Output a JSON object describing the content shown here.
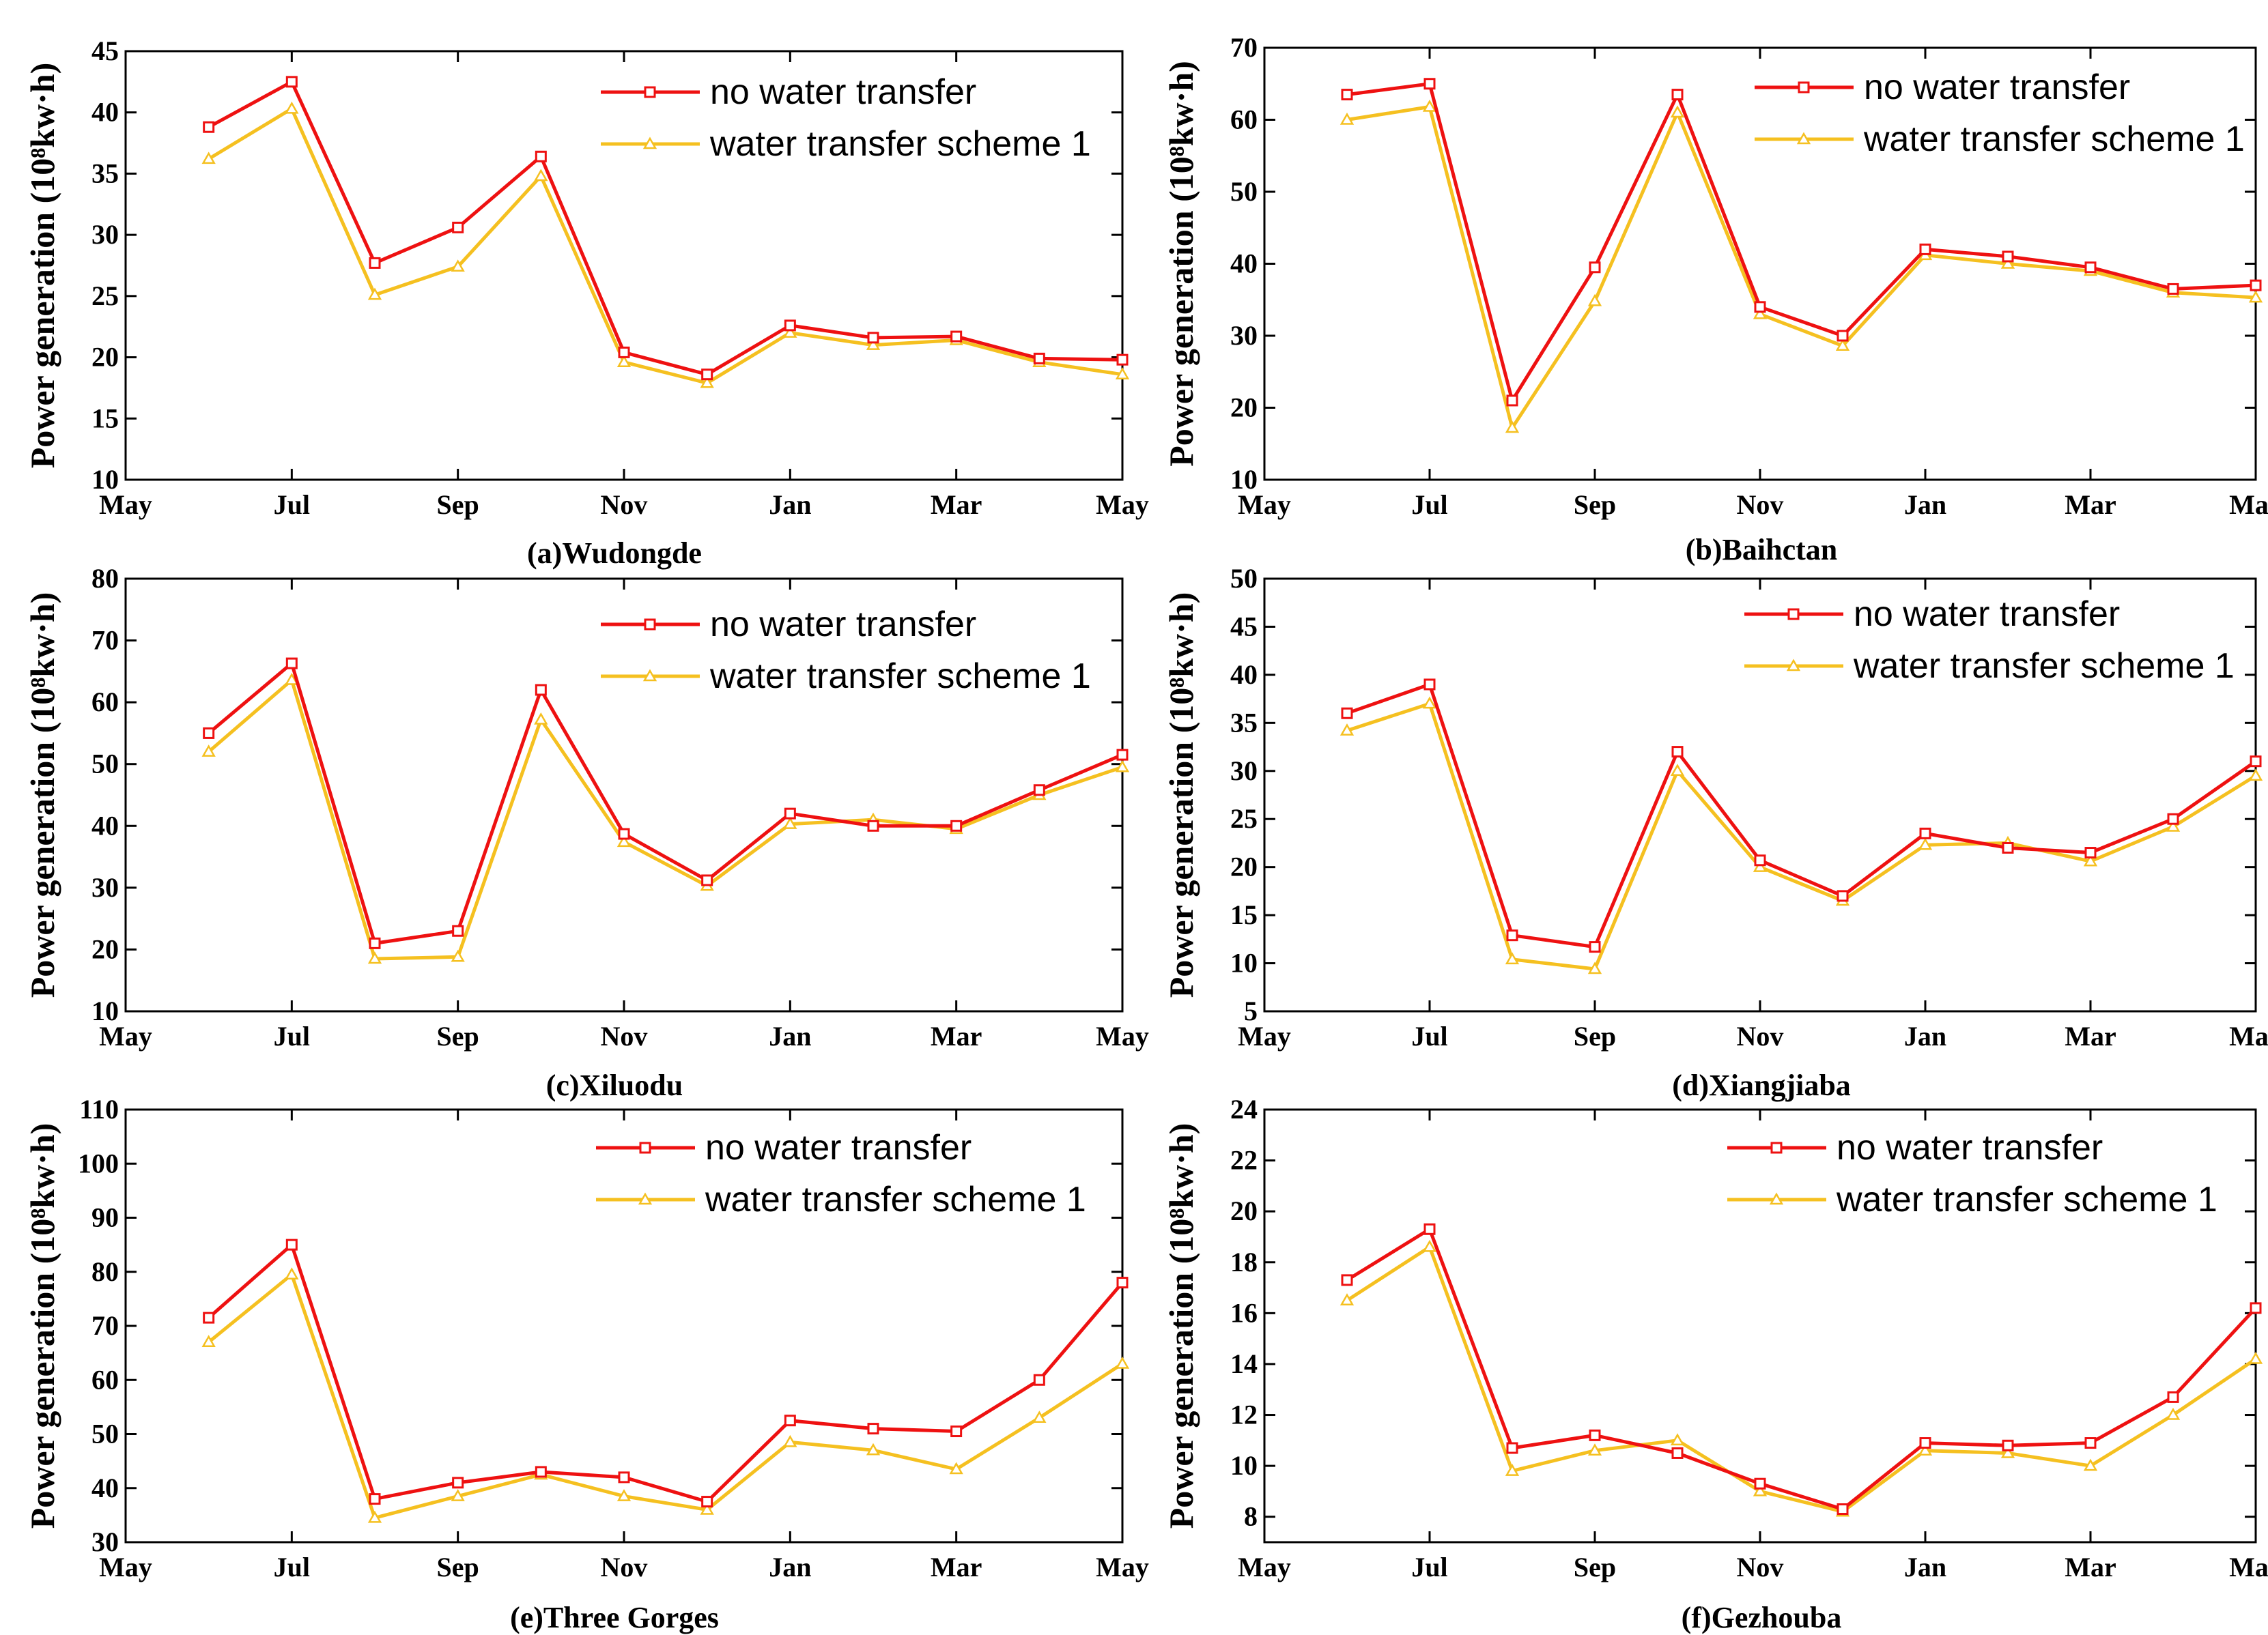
{
  "colors": {
    "no_transfer": "#ee1111",
    "scheme1": "#f5c020",
    "axis": "#000000"
  },
  "y_unit": "10^8 kw·h",
  "chart_data": [
    {
      "type": "line",
      "caption": "(a)Wudongde",
      "ylabel": "Power generation (10⁸kw·h)",
      "x_ticks": [
        "May",
        "Jul",
        "Sep",
        "Nov",
        "Jan",
        "Mar",
        "May"
      ],
      "x_range": [
        0,
        12
      ],
      "ylim": [
        10,
        45
      ],
      "y_ticks": [
        10,
        15,
        20,
        25,
        30,
        35,
        40,
        45
      ],
      "x": [
        1,
        2,
        3,
        4,
        5,
        6,
        7,
        8,
        9,
        10,
        11,
        12
      ],
      "series": [
        {
          "name": "no water transfer",
          "values": [
            38.8,
            42.5,
            27.7,
            30.6,
            36.4,
            20.4,
            18.6,
            22.6,
            21.6,
            21.7,
            19.9,
            19.8
          ]
        },
        {
          "name": "water transfer scheme 1",
          "values": [
            36.2,
            40.3,
            25.1,
            27.4,
            34.8,
            19.6,
            17.9,
            22.0,
            21.0,
            21.4,
            19.6,
            18.6
          ]
        }
      ]
    },
    {
      "type": "line",
      "caption": "(b)Baihctan",
      "ylabel": "Power generation (10⁸kw·h)",
      "x_ticks": [
        "May",
        "Jul",
        "Sep",
        "Nov",
        "Jan",
        "Mar",
        "May"
      ],
      "x_range": [
        0,
        12
      ],
      "ylim": [
        10,
        70
      ],
      "y_ticks": [
        10,
        20,
        30,
        40,
        50,
        60,
        70
      ],
      "x": [
        1,
        2,
        3,
        4,
        5,
        6,
        7,
        8,
        9,
        10,
        11,
        12
      ],
      "series": [
        {
          "name": "no water transfer",
          "values": [
            63.5,
            65.0,
            21.0,
            39.5,
            63.5,
            34.0,
            30.0,
            42.0,
            41.0,
            39.5,
            36.5,
            37.0
          ]
        },
        {
          "name": "water transfer scheme 1",
          "values": [
            60.0,
            61.8,
            17.2,
            34.8,
            61.0,
            33.0,
            28.6,
            41.2,
            40.0,
            39.0,
            36.0,
            35.3
          ]
        }
      ]
    },
    {
      "type": "line",
      "caption": "(c)Xiluodu",
      "ylabel": "Power generation (10⁸kw·h)",
      "x_ticks": [
        "May",
        "Jul",
        "Sep",
        "Nov",
        "Jan",
        "Mar",
        "May"
      ],
      "x_range": [
        0,
        12
      ],
      "ylim": [
        10,
        80
      ],
      "y_ticks": [
        10,
        20,
        30,
        40,
        50,
        60,
        70,
        80
      ],
      "x": [
        1,
        2,
        3,
        4,
        5,
        6,
        7,
        8,
        9,
        10,
        11,
        12
      ],
      "series": [
        {
          "name": "no water transfer",
          "values": [
            55.0,
            66.3,
            21.0,
            23.0,
            62.0,
            38.7,
            31.2,
            42.0,
            40.0,
            40.0,
            45.8,
            51.5
          ]
        },
        {
          "name": "water transfer scheme 1",
          "values": [
            52.0,
            63.6,
            18.5,
            18.8,
            57.2,
            37.4,
            30.3,
            40.3,
            41.0,
            39.5,
            45.0,
            49.5
          ]
        }
      ]
    },
    {
      "type": "line",
      "caption": "(d)Xiangjiaba",
      "ylabel": "Power generation (10⁸kw·h)",
      "x_ticks": [
        "May",
        "Jul",
        "Sep",
        "Nov",
        "Jan",
        "Mar",
        "May"
      ],
      "x_range": [
        0,
        12
      ],
      "ylim": [
        5,
        50
      ],
      "y_ticks": [
        5,
        10,
        15,
        20,
        25,
        30,
        35,
        40,
        45,
        50
      ],
      "x": [
        1,
        2,
        3,
        4,
        5,
        6,
        7,
        8,
        9,
        10,
        11,
        12
      ],
      "series": [
        {
          "name": "no water transfer",
          "values": [
            36.0,
            39.0,
            12.9,
            11.7,
            32.0,
            20.7,
            17.0,
            23.5,
            22.0,
            21.5,
            25.0,
            31.0
          ]
        },
        {
          "name": "water transfer scheme 1",
          "values": [
            34.2,
            37.0,
            10.4,
            9.4,
            30.0,
            20.0,
            16.5,
            22.3,
            22.5,
            20.6,
            24.2,
            29.5
          ]
        }
      ]
    },
    {
      "type": "line",
      "caption": "(e)Three Gorges",
      "ylabel": "Power generation (10⁸kw·h)",
      "x_ticks": [
        "May",
        "Jul",
        "Sep",
        "Nov",
        "Jan",
        "Mar",
        "May"
      ],
      "x_range": [
        0,
        12
      ],
      "ylim": [
        30,
        110
      ],
      "y_ticks": [
        30,
        40,
        50,
        60,
        70,
        80,
        90,
        100,
        110
      ],
      "x": [
        1,
        2,
        3,
        4,
        5,
        6,
        7,
        8,
        9,
        10,
        11,
        12
      ],
      "series": [
        {
          "name": "no water transfer",
          "values": [
            71.5,
            85.0,
            38.0,
            41.0,
            43.0,
            42.0,
            37.5,
            52.5,
            51.0,
            50.5,
            60.0,
            78.0
          ]
        },
        {
          "name": "water transfer scheme 1",
          "values": [
            67.0,
            79.5,
            34.5,
            38.5,
            42.5,
            38.5,
            36.0,
            48.5,
            47.0,
            43.5,
            53.0,
            63.0
          ]
        }
      ]
    },
    {
      "type": "line",
      "caption": "(f)Gezhouba",
      "ylabel": "Power generation (10⁸kw·h)",
      "x_ticks": [
        "May",
        "Jul",
        "Sep",
        "Nov",
        "Jan",
        "Mar",
        "May"
      ],
      "x_range": [
        0,
        12
      ],
      "ylim": [
        7,
        24
      ],
      "y_ticks": [
        8,
        10,
        12,
        14,
        16,
        18,
        20,
        22,
        24
      ],
      "x": [
        1,
        2,
        3,
        4,
        5,
        6,
        7,
        8,
        9,
        10,
        11,
        12
      ],
      "series": [
        {
          "name": "no water transfer",
          "values": [
            17.3,
            19.3,
            10.7,
            11.2,
            10.5,
            9.3,
            8.3,
            10.9,
            10.8,
            10.9,
            12.7,
            16.2
          ]
        },
        {
          "name": "water transfer scheme 1",
          "values": [
            16.5,
            18.6,
            9.8,
            10.6,
            11.0,
            9.0,
            8.2,
            10.6,
            10.5,
            10.0,
            12.0,
            14.2
          ]
        }
      ]
    }
  ]
}
